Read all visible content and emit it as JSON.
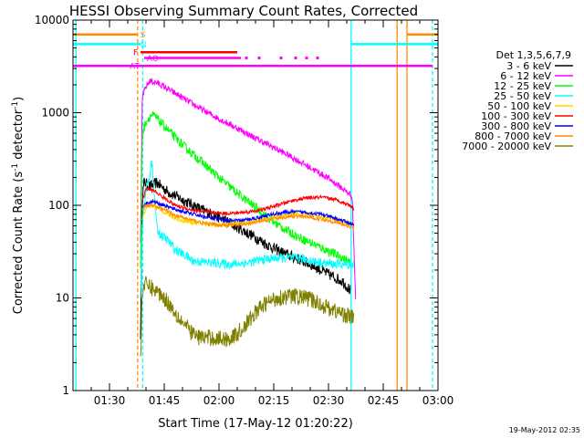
{
  "chart_data": {
    "type": "line",
    "title": "HESSI Observing Summary Count Rates, Corrected",
    "xlabel": "Start Time (17-May-12 01:20:22)",
    "ylabel": "Corrected Count Rate (s",
    "ylabel_exp": "-1",
    "ylabel_mid": " detector",
    "ylabel_end": ")",
    "stamp": "19-May-2012 02:35",
    "legend_title": "Det 1,3,5,6,7,9",
    "legend_position": "right",
    "yscale": "log",
    "ylim": [
      1,
      10000
    ],
    "xlim_min": [
      80,
      180
    ],
    "x_ticks": [
      {
        "m": 90,
        "label": "01:30"
      },
      {
        "m": 105,
        "label": "01:45"
      },
      {
        "m": 120,
        "label": "02:00"
      },
      {
        "m": 135,
        "label": "02:15"
      },
      {
        "m": 150,
        "label": "02:30"
      },
      {
        "m": 165,
        "label": "02:45"
      },
      {
        "m": 180,
        "label": "03:00"
      }
    ],
    "y_ticks": [
      {
        "v": 1,
        "label": "1"
      },
      {
        "v": 10,
        "label": "10"
      },
      {
        "v": 100,
        "label": "100"
      },
      {
        "v": 1000,
        "label": "1000"
      },
      {
        "v": 10000,
        "label": "10000"
      }
    ],
    "series": [
      {
        "name": "3 - 6 keV",
        "color": "#000000",
        "noise": 0.06,
        "points": [
          [
            98.5,
            4
          ],
          [
            99.0,
            120
          ],
          [
            99.5,
            180
          ],
          [
            101,
            160
          ],
          [
            103,
            175
          ],
          [
            106,
            140
          ],
          [
            110,
            115
          ],
          [
            114,
            95
          ],
          [
            118,
            80
          ],
          [
            122,
            68
          ],
          [
            126,
            55
          ],
          [
            130,
            45
          ],
          [
            134,
            36
          ],
          [
            138,
            30
          ],
          [
            142,
            26
          ],
          [
            146,
            22
          ],
          [
            150,
            18
          ],
          [
            154,
            15
          ],
          [
            156,
            12
          ]
        ]
      },
      {
        "name": "6 - 12 keV",
        "color": "#ff00ff",
        "noise": 0.035,
        "points": [
          [
            98.5,
            40
          ],
          [
            99.0,
            1500
          ],
          [
            100,
            1900
          ],
          [
            101,
            2200
          ],
          [
            103,
            2100
          ],
          [
            106,
            1800
          ],
          [
            110,
            1450
          ],
          [
            115,
            1100
          ],
          [
            120,
            860
          ],
          [
            125,
            680
          ],
          [
            130,
            530
          ],
          [
            135,
            420
          ],
          [
            140,
            330
          ],
          [
            145,
            255
          ],
          [
            150,
            195
          ],
          [
            154,
            150
          ],
          [
            156.5,
            125
          ],
          [
            157.5,
            8
          ]
        ]
      },
      {
        "name": "12 - 25 keV",
        "color": "#00ff00",
        "noise": 0.05,
        "points": [
          [
            98.5,
            20
          ],
          [
            99,
            600
          ],
          [
            100,
            800
          ],
          [
            101.5,
            950
          ],
          [
            103,
            870
          ],
          [
            106,
            650
          ],
          [
            110,
            450
          ],
          [
            115,
            300
          ],
          [
            120,
            200
          ],
          [
            125,
            135
          ],
          [
            130,
            95
          ],
          [
            134,
            70
          ],
          [
            138,
            55
          ],
          [
            142,
            45
          ],
          [
            146,
            38
          ],
          [
            150,
            32
          ],
          [
            154,
            27
          ],
          [
            156,
            24
          ]
        ]
      },
      {
        "name": "25 - 50 keV",
        "color": "#00ffff",
        "noise": 0.05,
        "points": [
          [
            98.5,
            10
          ],
          [
            99,
            60
          ],
          [
            100,
            150
          ],
          [
            101,
            200
          ],
          [
            101.5,
            330
          ],
          [
            102.5,
            100
          ],
          [
            103,
            55
          ],
          [
            104,
            48
          ],
          [
            106,
            42
          ],
          [
            108,
            33
          ],
          [
            110,
            30
          ],
          [
            113,
            25
          ],
          [
            118,
            24
          ],
          [
            123,
            23
          ],
          [
            128,
            24
          ],
          [
            132,
            26
          ],
          [
            136,
            27
          ],
          [
            140,
            27
          ],
          [
            144,
            26
          ],
          [
            148,
            24
          ],
          [
            152,
            23
          ],
          [
            157,
            23
          ]
        ]
      },
      {
        "name": "50 - 100 keV",
        "color": "#ffd700",
        "noise": 0.025,
        "points": [
          [
            99,
            70
          ],
          [
            100,
            95
          ],
          [
            102,
            100
          ],
          [
            105,
            85
          ],
          [
            108,
            72
          ],
          [
            112,
            66
          ],
          [
            116,
            63
          ],
          [
            120,
            62
          ],
          [
            124,
            63
          ],
          [
            128,
            65
          ],
          [
            132,
            70
          ],
          [
            136,
            76
          ],
          [
            140,
            80
          ],
          [
            144,
            80
          ],
          [
            148,
            76
          ],
          [
            152,
            70
          ],
          [
            157,
            62
          ]
        ]
      },
      {
        "name": "100 - 300 keV",
        "color": "#ff0000",
        "noise": 0.02,
        "points": [
          [
            99,
            110
          ],
          [
            100,
            150
          ],
          [
            102,
            145
          ],
          [
            105,
            120
          ],
          [
            108,
            100
          ],
          [
            112,
            90
          ],
          [
            116,
            85
          ],
          [
            120,
            82
          ],
          [
            124,
            82
          ],
          [
            128,
            85
          ],
          [
            132,
            90
          ],
          [
            136,
            100
          ],
          [
            140,
            112
          ],
          [
            144,
            120
          ],
          [
            148,
            122
          ],
          [
            152,
            115
          ],
          [
            156,
            100
          ],
          [
            157,
            90
          ]
        ]
      },
      {
        "name": "300 - 800 keV",
        "color": "#0000ff",
        "noise": 0.02,
        "points": [
          [
            99,
            95
          ],
          [
            100,
            105
          ],
          [
            102,
            110
          ],
          [
            105,
            100
          ],
          [
            108,
            90
          ],
          [
            112,
            82
          ],
          [
            116,
            75
          ],
          [
            120,
            70
          ],
          [
            124,
            68
          ],
          [
            128,
            70
          ],
          [
            132,
            76
          ],
          [
            136,
            82
          ],
          [
            140,
            85
          ],
          [
            144,
            84
          ],
          [
            148,
            80
          ],
          [
            152,
            72
          ],
          [
            157,
            62
          ]
        ]
      },
      {
        "name": "800 - 7000 keV",
        "color": "#ff8c00",
        "noise": 0.02,
        "points": [
          [
            99,
            90
          ],
          [
            100,
            100
          ],
          [
            102,
            100
          ],
          [
            105,
            90
          ],
          [
            108,
            78
          ],
          [
            112,
            70
          ],
          [
            116,
            64
          ],
          [
            120,
            61
          ],
          [
            124,
            61
          ],
          [
            128,
            63
          ],
          [
            132,
            68
          ],
          [
            136,
            73
          ],
          [
            140,
            76
          ],
          [
            144,
            75
          ],
          [
            148,
            71
          ],
          [
            152,
            66
          ],
          [
            157,
            57
          ]
        ]
      },
      {
        "name": "7000 - 20000 keV",
        "color": "#808000",
        "noise": 0.09,
        "points": [
          [
            98.5,
            2
          ],
          [
            99,
            13
          ],
          [
            100,
            14
          ],
          [
            102,
            12.5
          ],
          [
            104,
            11
          ],
          [
            106,
            9
          ],
          [
            108,
            7
          ],
          [
            110,
            5.5
          ],
          [
            112,
            4.4
          ],
          [
            114,
            3.8
          ],
          [
            118,
            3.7
          ],
          [
            122,
            3.6
          ],
          [
            124,
            3.8
          ],
          [
            126,
            4.5
          ],
          [
            128,
            5.5
          ],
          [
            130,
            7
          ],
          [
            133,
            8.8
          ],
          [
            136,
            10
          ],
          [
            140,
            10.5
          ],
          [
            144,
            10
          ],
          [
            148,
            8.5
          ],
          [
            152,
            7.2
          ],
          [
            155,
            6.5
          ],
          [
            157,
            6
          ]
        ]
      }
    ],
    "flags": [
      {
        "label": "S",
        "color": "#ff8c00",
        "level": 7000,
        "segments": [
          [
            80,
            97.5
          ],
          [
            171.5,
            180
          ]
        ]
      },
      {
        "label": "N",
        "color": "#00ffff",
        "level": 5500,
        "segments": [
          [
            80,
            98.5
          ],
          [
            156.2,
            180
          ]
        ]
      },
      {
        "label": "F",
        "color": "#ff0000",
        "level": 4500,
        "segments": [
          [
            98.5,
            125
          ]
        ]
      },
      {
        "label": "AO",
        "color": "#ff00ff",
        "level": 3900,
        "segments": [
          [
            99.5,
            126
          ]
        ],
        "dots": [
          127.5,
          131,
          137,
          141,
          144,
          147
        ]
      },
      {
        "label": "AT",
        "color": "#ff00ff",
        "level": 3200,
        "segments": [
          [
            80,
            178.5
          ]
        ]
      }
    ],
    "vlines": [
      {
        "m": 80.8,
        "color": "#00ffff",
        "dashed": false
      },
      {
        "m": 97.7,
        "color": "#ff8c00",
        "dashed": true
      },
      {
        "m": 99.1,
        "color": "#00ffff",
        "dashed": true
      },
      {
        "m": 156.2,
        "color": "#00ffff",
        "dashed": false
      },
      {
        "m": 168.8,
        "color": "#ff8c00",
        "dashed": false
      },
      {
        "m": 171.5,
        "color": "#ff8c00",
        "dashed": false
      },
      {
        "m": 178.5,
        "color": "#00ffff",
        "dashed": true
      }
    ]
  }
}
